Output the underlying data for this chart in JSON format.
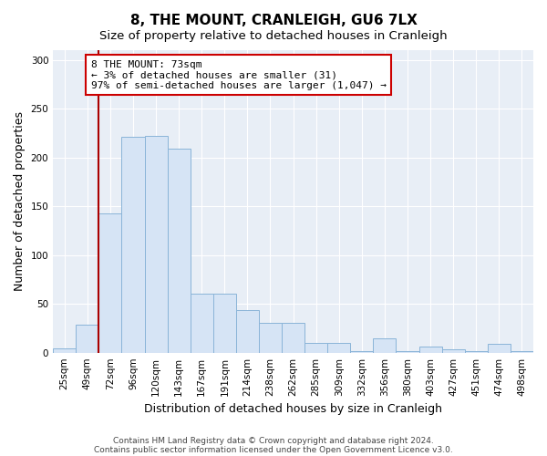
{
  "title": "8, THE MOUNT, CRANLEIGH, GU6 7LX",
  "subtitle": "Size of property relative to detached houses in Cranleigh",
  "xlabel": "Distribution of detached houses by size in Cranleigh",
  "ylabel": "Number of detached properties",
  "categories": [
    "25sqm",
    "49sqm",
    "72sqm",
    "96sqm",
    "120sqm",
    "143sqm",
    "167sqm",
    "191sqm",
    "214sqm",
    "238sqm",
    "262sqm",
    "285sqm",
    "309sqm",
    "332sqm",
    "356sqm",
    "380sqm",
    "403sqm",
    "427sqm",
    "451sqm",
    "474sqm",
    "498sqm"
  ],
  "values": [
    4,
    29,
    143,
    221,
    222,
    209,
    60,
    60,
    44,
    31,
    31,
    10,
    10,
    2,
    15,
    2,
    6,
    3,
    2,
    9,
    2
  ],
  "bar_color": "#d6e4f5",
  "bar_edge_color": "#8ab4d8",
  "vline_x_index": 2,
  "vline_color": "#aa0000",
  "annotation_text": "8 THE MOUNT: 73sqm\n← 3% of detached houses are smaller (31)\n97% of semi-detached houses are larger (1,047) →",
  "annotation_box_edge_color": "#cc0000",
  "ylim": [
    0,
    310
  ],
  "yticks": [
    0,
    50,
    100,
    150,
    200,
    250,
    300
  ],
  "footnote_line1": "Contains HM Land Registry data © Crown copyright and database right 2024.",
  "footnote_line2": "Contains public sector information licensed under the Open Government Licence v3.0.",
  "plot_bg_color": "#e8eef6",
  "title_fontsize": 11,
  "subtitle_fontsize": 9.5,
  "ylabel_fontsize": 9,
  "xlabel_fontsize": 9,
  "tick_fontsize": 7.5,
  "ann_fontsize": 8,
  "footnote_fontsize": 6.5
}
